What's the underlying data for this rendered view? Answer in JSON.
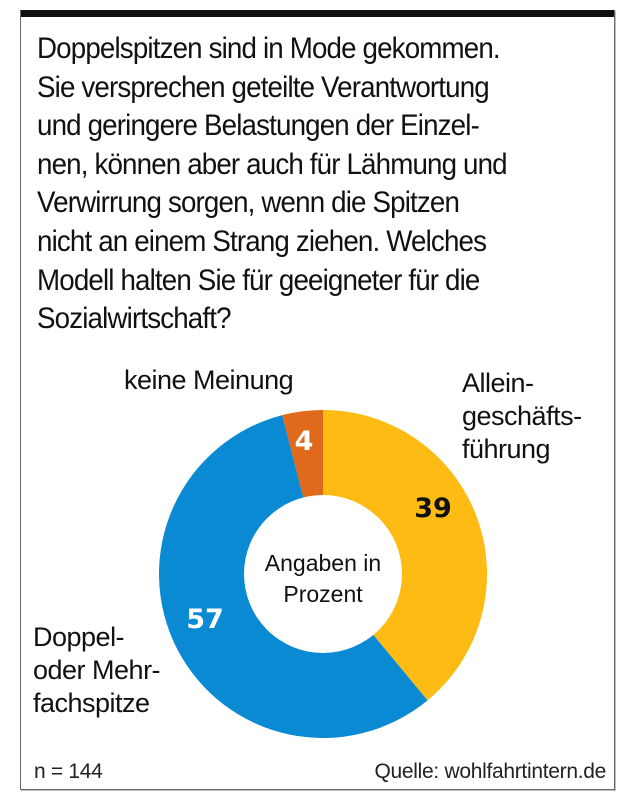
{
  "question": {
    "lines": [
      "Doppelspitzen sind in Mode gekommen.",
      "Sie versprechen geteilte Verantwortung",
      "und geringere Belastungen der Einzel-",
      "nen, können aber auch für Lähmung und",
      "Verwirrung sorgen, wenn die Spitzen",
      "nicht an einem Strang ziehen. Welches",
      "Modell halten Sie für geeigneter für die",
      "Sozialwirtschaft?"
    ]
  },
  "chart_data": {
    "type": "pie",
    "variant": "donut",
    "title": "Doppelspitzen sind in Mode gekommen. Sie versprechen geteilte Verantwortung und geringere Belastungen der Einzelnen, können aber auch für Lähmung und Verwirrung sorgen, wenn die Spitzen nicht an einem Strang ziehen. Welches Modell halten Sie für geeigneter für die Sozialwirtschaft?",
    "center_label": [
      "Angaben in",
      "Prozent"
    ],
    "unit": "Prozent",
    "start": "12 o'clock, clockwise",
    "slices": [
      {
        "name": "Alleingeschäftsführung",
        "label_lines": [
          "Allein-",
          "geschäfts-",
          "führung"
        ],
        "value": 39,
        "color": "#FDBB13",
        "value_color": "#111111"
      },
      {
        "name": "Doppel- oder Mehrfachspitze",
        "label_lines": [
          "Doppel-",
          "oder Mehr-",
          "fachspitze"
        ],
        "value": 57,
        "color": "#0A8AD2",
        "value_color": "#ffffff"
      },
      {
        "name": "keine Meinung",
        "label_lines": [
          "keine Meinung"
        ],
        "value": 4,
        "color": "#E0691C",
        "value_color": "#ffffff"
      }
    ]
  },
  "footer": {
    "sample": "n = 144",
    "source": "Quelle: wohlfahrtintern.de"
  }
}
